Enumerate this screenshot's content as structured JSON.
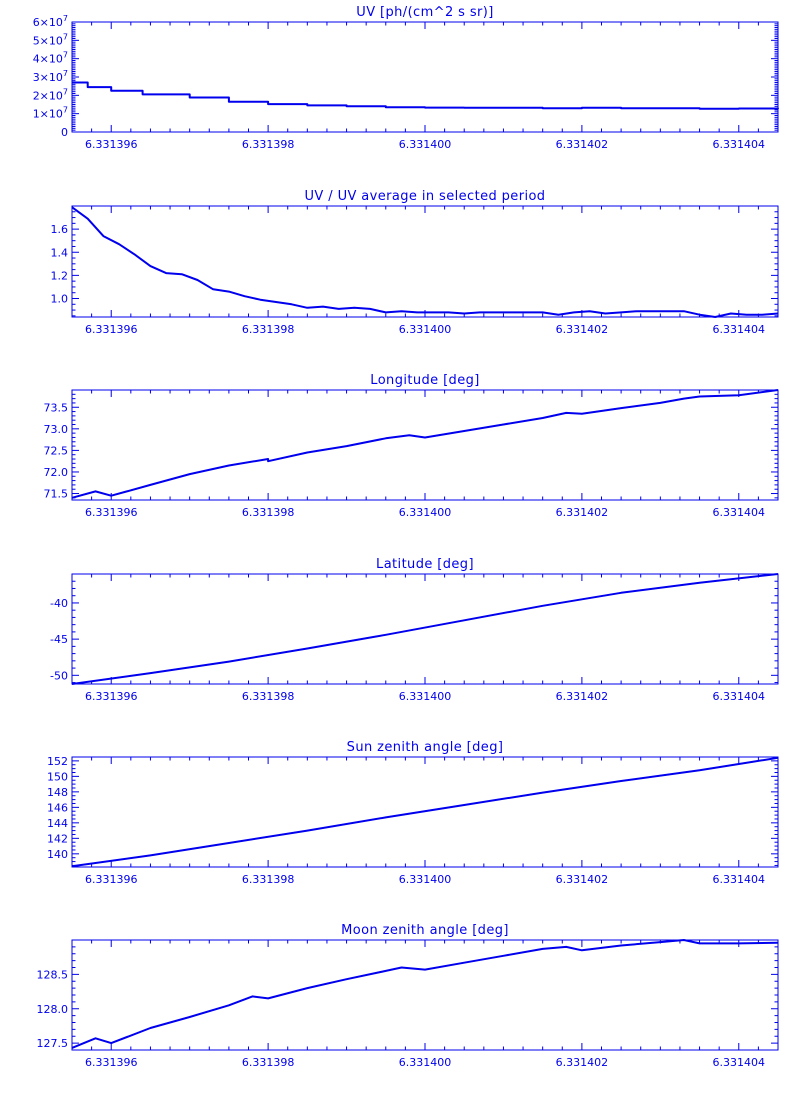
{
  "colors": {
    "ink": "#0000ee",
    "background": "#ffffff"
  },
  "chart_data": [
    {
      "type": "line",
      "title": "UV [ph/(cm^2 s sr)]",
      "xlabel": "",
      "ylabel": "",
      "xlim": [
        6.3313955,
        6.3314045
      ],
      "ylim": [
        0,
        60000000
      ],
      "x_ticks": [
        6.331396,
        6.331398,
        6.3314,
        6.331402,
        6.331404
      ],
      "x_tick_labels": [
        "6.331396",
        "6.331398",
        "6.331400",
        "6.331402",
        "6.331404"
      ],
      "y_ticks": [
        0,
        10000000,
        20000000,
        30000000,
        40000000,
        50000000,
        60000000
      ],
      "y_tick_labels": [
        {
          "mantissa": "0",
          "exp": ""
        },
        {
          "mantissa": "1×10",
          "exp": "7"
        },
        {
          "mantissa": "2×10",
          "exp": "7"
        },
        {
          "mantissa": "3×10",
          "exp": "7"
        },
        {
          "mantissa": "4×10",
          "exp": "7"
        },
        {
          "mantissa": "5×10",
          "exp": "7"
        },
        {
          "mantissa": "6×10",
          "exp": "7"
        }
      ],
      "minor_y_per_major": 10,
      "step": true,
      "grid": false,
      "series": [
        {
          "x": [
            6.3313955,
            6.3313957,
            6.331396,
            6.3313964,
            6.331397,
            6.3313975,
            6.331398,
            6.3313985,
            6.331399,
            6.3313995,
            6.3314,
            6.3314005,
            6.331401,
            6.3314015,
            6.331402,
            6.3314025,
            6.331403,
            6.3314035,
            6.331404,
            6.3314045
          ],
          "y": [
            27000000,
            24500000,
            22500000,
            20500000,
            18800000,
            16500000,
            15200000,
            14500000,
            14000000,
            13500000,
            13300000,
            13200000,
            13200000,
            13000000,
            13200000,
            13000000,
            12900000,
            12700000,
            12800000,
            12700000
          ]
        }
      ]
    },
    {
      "type": "line",
      "title": "UV / UV average in selected period",
      "xlabel": "",
      "ylabel": "",
      "xlim": [
        6.3313955,
        6.3314045
      ],
      "ylim": [
        0.84,
        1.8
      ],
      "x_ticks": [
        6.331396,
        6.331398,
        6.3314,
        6.331402,
        6.331404
      ],
      "x_tick_labels": [
        "6.331396",
        "6.331398",
        "6.331400",
        "6.331402",
        "6.331404"
      ],
      "y_ticks": [
        1.0,
        1.2,
        1.4,
        1.6
      ],
      "y_tick_labels": [
        "1.0",
        "1.2",
        "1.4",
        "1.6"
      ],
      "minor_y_per_major": 4,
      "grid": false,
      "series": [
        {
          "x": [
            6.3313955,
            6.3313957,
            6.3313959,
            6.3313961,
            6.3313963,
            6.3313965,
            6.3313967,
            6.3313969,
            6.3313971,
            6.3313973,
            6.3313975,
            6.3313977,
            6.3313979,
            6.3313981,
            6.3313983,
            6.3313985,
            6.3313987,
            6.3313989,
            6.3313991,
            6.3313993,
            6.3313995,
            6.3313997,
            6.3313999,
            6.3314001,
            6.3314003,
            6.3314005,
            6.3314007,
            6.3314009,
            6.3314011,
            6.3314013,
            6.3314015,
            6.3314017,
            6.3314019,
            6.3314021,
            6.3314023,
            6.3314025,
            6.3314027,
            6.3314029,
            6.3314031,
            6.3314033,
            6.3314035,
            6.3314037,
            6.3314039,
            6.3314041,
            6.3314043,
            6.3314045
          ],
          "y": [
            1.79,
            1.69,
            1.54,
            1.47,
            1.38,
            1.28,
            1.22,
            1.21,
            1.16,
            1.08,
            1.06,
            1.02,
            0.99,
            0.97,
            0.95,
            0.92,
            0.93,
            0.91,
            0.92,
            0.91,
            0.88,
            0.89,
            0.88,
            0.88,
            0.88,
            0.87,
            0.88,
            0.88,
            0.88,
            0.88,
            0.88,
            0.86,
            0.88,
            0.89,
            0.87,
            0.88,
            0.89,
            0.89,
            0.89,
            0.89,
            0.86,
            0.84,
            0.87,
            0.86,
            0.86,
            0.87
          ]
        }
      ]
    },
    {
      "type": "line",
      "title": "Longitude [deg]",
      "xlabel": "",
      "ylabel": "",
      "xlim": [
        6.3313955,
        6.3314045
      ],
      "ylim": [
        71.35,
        73.9
      ],
      "x_ticks": [
        6.331396,
        6.331398,
        6.3314,
        6.331402,
        6.331404
      ],
      "x_tick_labels": [
        "6.331396",
        "6.331398",
        "6.331400",
        "6.331402",
        "6.331404"
      ],
      "y_ticks": [
        71.5,
        72.0,
        72.5,
        73.0,
        73.5
      ],
      "y_tick_labels": [
        "71.5",
        "72.0",
        "72.5",
        "73.0",
        "73.5"
      ],
      "minor_y_per_major": 5,
      "grid": false,
      "series": [
        {
          "x": [
            6.3313955,
            6.3313958,
            6.331396,
            6.3313962,
            6.3313965,
            6.331397,
            6.3313975,
            6.331398,
            6.331398,
            6.3313985,
            6.331399,
            6.3313995,
            6.3313998,
            6.3314,
            6.3314005,
            6.331401,
            6.3314015,
            6.3314018,
            6.331402,
            6.3314025,
            6.331403,
            6.3314033,
            6.3314035,
            6.331404,
            6.3314045
          ],
          "y": [
            71.4,
            71.55,
            71.45,
            71.55,
            71.7,
            71.95,
            72.15,
            72.3,
            72.25,
            72.45,
            72.6,
            72.78,
            72.85,
            72.8,
            72.95,
            73.1,
            73.25,
            73.37,
            73.35,
            73.48,
            73.6,
            73.7,
            73.75,
            73.78,
            73.9
          ]
        }
      ]
    },
    {
      "type": "line",
      "title": "Latitude [deg]",
      "xlabel": "",
      "ylabel": "",
      "xlim": [
        6.3313955,
        6.3314045
      ],
      "ylim": [
        -51.2,
        -36
      ],
      "x_ticks": [
        6.331396,
        6.331398,
        6.3314,
        6.331402,
        6.331404
      ],
      "x_tick_labels": [
        "6.331396",
        "6.331398",
        "6.331400",
        "6.331402",
        "6.331404"
      ],
      "y_ticks": [
        -50,
        -45,
        -40
      ],
      "y_tick_labels": [
        "-50",
        "-45",
        "-40"
      ],
      "minor_y_per_major": 5,
      "grid": false,
      "series": [
        {
          "x": [
            6.3313955,
            6.3313965,
            6.3313975,
            6.3313985,
            6.3313995,
            6.3314005,
            6.3314015,
            6.3314025,
            6.3314035,
            6.3314045
          ],
          "y": [
            -51.2,
            -49.7,
            -48.1,
            -46.3,
            -44.4,
            -42.4,
            -40.4,
            -38.6,
            -37.2,
            -36.0
          ]
        }
      ]
    },
    {
      "type": "line",
      "title": "Sun zenith angle [deg]",
      "xlabel": "",
      "ylabel": "",
      "xlim": [
        6.3313955,
        6.3314045
      ],
      "ylim": [
        138.3,
        152.5
      ],
      "x_ticks": [
        6.331396,
        6.331398,
        6.3314,
        6.331402,
        6.331404
      ],
      "x_tick_labels": [
        "6.331396",
        "6.331398",
        "6.331400",
        "6.331402",
        "6.331404"
      ],
      "y_ticks": [
        140,
        142,
        144,
        146,
        148,
        150,
        152
      ],
      "y_tick_labels": [
        "140",
        "142",
        "144",
        "146",
        "148",
        "150",
        "152"
      ],
      "minor_y_per_major": 4,
      "grid": false,
      "series": [
        {
          "x": [
            6.3313955,
            6.3313965,
            6.3313975,
            6.3313985,
            6.3313995,
            6.3314005,
            6.3314015,
            6.3314025,
            6.3314035,
            6.3314045
          ],
          "y": [
            138.4,
            139.8,
            141.4,
            143.0,
            144.7,
            146.3,
            147.9,
            149.4,
            150.8,
            152.4
          ]
        }
      ]
    },
    {
      "type": "line",
      "title": "Moon zenith angle [deg]",
      "xlabel": "",
      "ylabel": "",
      "xlim": [
        6.3313955,
        6.3314045
      ],
      "ylim": [
        127.4,
        129.0
      ],
      "x_ticks": [
        6.331396,
        6.331398,
        6.3314,
        6.331402,
        6.331404
      ],
      "x_tick_labels": [
        "6.331396",
        "6.331398",
        "6.331400",
        "6.331402",
        "6.331404"
      ],
      "y_ticks": [
        127.5,
        128.0,
        128.5
      ],
      "y_tick_labels": [
        "127.5",
        "128.0",
        "128.5"
      ],
      "minor_y_per_major": 5,
      "grid": false,
      "series": [
        {
          "x": [
            6.3313955,
            6.3313958,
            6.331396,
            6.3313965,
            6.331397,
            6.3313975,
            6.3313978,
            6.331398,
            6.3313985,
            6.331399,
            6.3313995,
            6.3313997,
            6.3314,
            6.3314005,
            6.331401,
            6.3314015,
            6.3314018,
            6.331402,
            6.3314025,
            6.331403,
            6.3314033,
            6.3314035,
            6.331404,
            6.3314045
          ],
          "y": [
            127.43,
            127.57,
            127.5,
            127.72,
            127.88,
            128.05,
            128.18,
            128.15,
            128.3,
            128.43,
            128.55,
            128.6,
            128.57,
            128.67,
            128.77,
            128.87,
            128.9,
            128.85,
            128.92,
            128.97,
            129.0,
            128.95,
            128.95,
            128.96
          ]
        }
      ]
    }
  ]
}
